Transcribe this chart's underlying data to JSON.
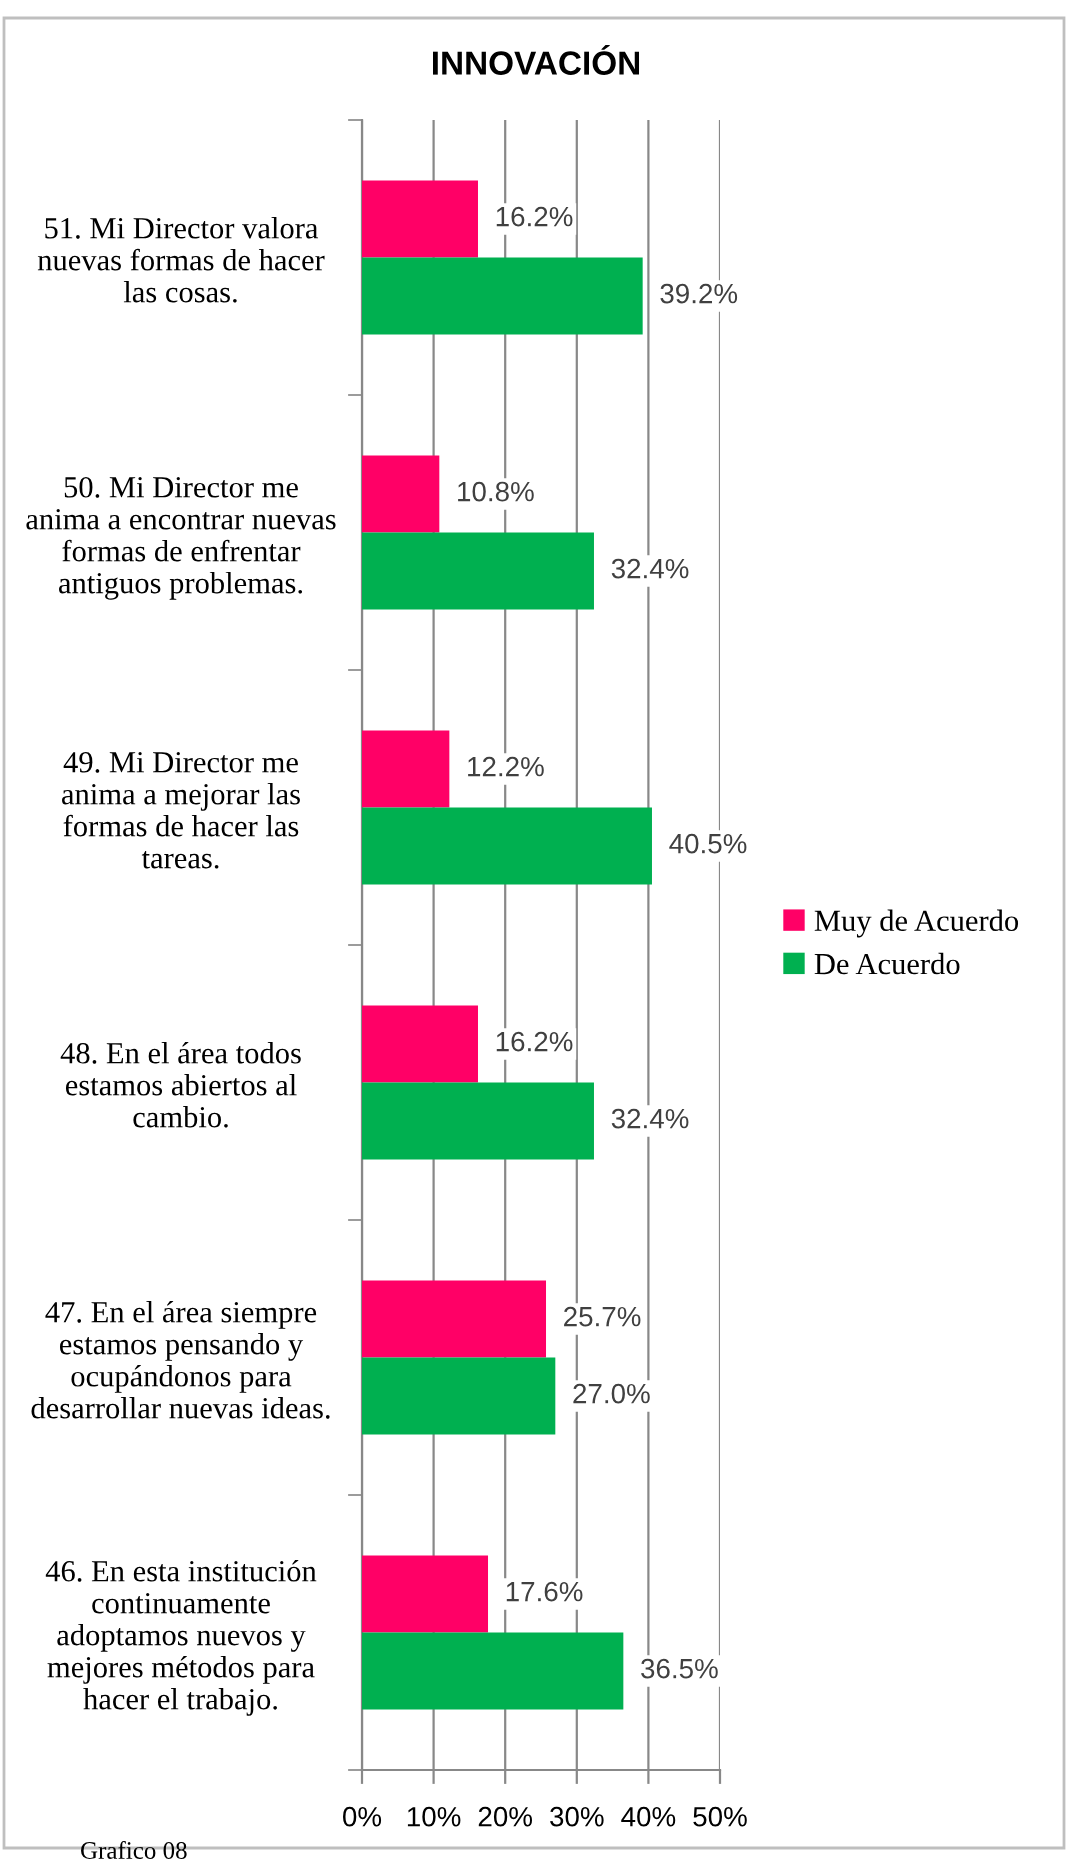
{
  "chart_data": {
    "type": "bar",
    "orientation": "horizontal",
    "title": "INNOVACIÓN",
    "categories": [
      "51. Mi Director valora\nnuevas formas de hacer\nlas cosas.",
      "50. Mi Director me\nanima a encontrar nuevas\nformas de enfrentar\nantiguos problemas.",
      "49. Mi Director me\nanima a mejorar las\nformas de hacer las\ntareas.",
      "48. En el área todos\nestamos abiertos al\ncambio.",
      "47. En el área siempre\nestamos pensando y\nocupándonos para\ndesarrollar nuevas ideas.",
      "46. En esta institución\ncontinuamente\nadoptamos nuevos y\nmejores métodos para\nhacer el trabajo."
    ],
    "series": [
      {
        "name": "Muy de Acuerdo",
        "color": "#ff0066",
        "values": [
          16.2,
          10.8,
          12.2,
          16.2,
          25.7,
          17.6
        ]
      },
      {
        "name": "De Acuerdo",
        "color": "#00b050",
        "values": [
          39.2,
          32.4,
          40.5,
          32.4,
          27.0,
          36.5
        ]
      }
    ],
    "xlim": [
      0,
      50
    ],
    "xticks": [
      {
        "value": 0,
        "label": "0%"
      },
      {
        "value": 10,
        "label": "10%"
      },
      {
        "value": 20,
        "label": "20%"
      },
      {
        "value": 30,
        "label": "30%"
      },
      {
        "value": 40,
        "label": "40%"
      },
      {
        "value": 50,
        "label": "50%"
      }
    ],
    "value_labels": [
      [
        "16.2%",
        "10.8%",
        "12.2%",
        "16.2%",
        "25.7%",
        "17.6%"
      ],
      [
        "39.2%",
        "32.4%",
        "40.5%",
        "32.4%",
        "27.0%",
        "36.5%"
      ]
    ],
    "grid": "x",
    "legend": "right",
    "annotations": [
      "Grafico 08"
    ]
  }
}
